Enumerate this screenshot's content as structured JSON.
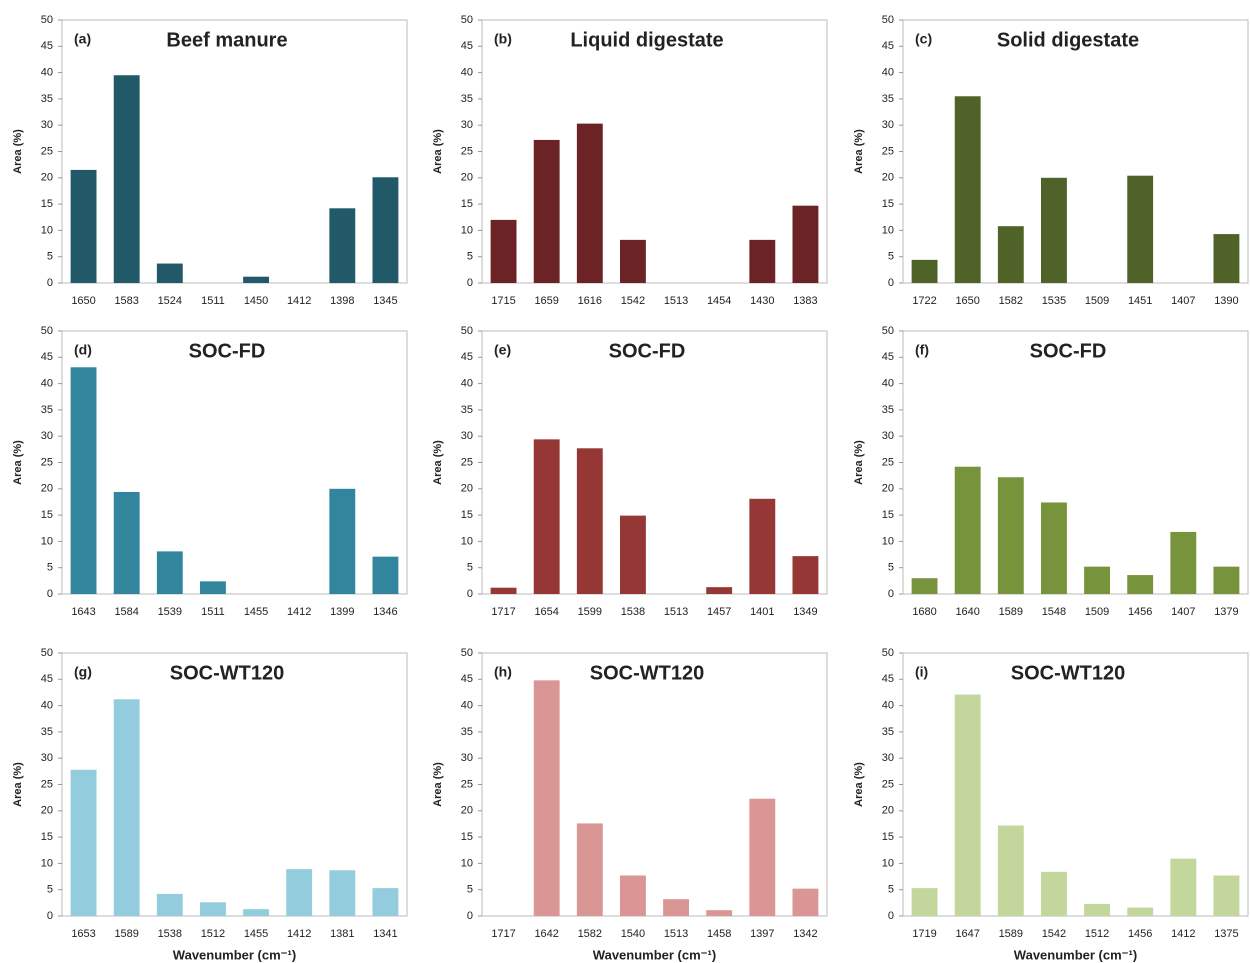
{
  "chart_data": [
    {
      "type": "bar",
      "panel_label": "(a)",
      "title": "Beef manure",
      "y_label": "Area (%)",
      "color": "#215968",
      "categories": [
        "1650",
        "1583",
        "1524",
        "1511",
        "1450",
        "1412",
        "1398",
        "1345"
      ],
      "values": [
        21.5,
        39.5,
        3.7,
        0,
        1.2,
        0,
        14.2,
        20.1
      ],
      "ylim": [
        0,
        50
      ],
      "yticks": [
        0,
        5,
        10,
        15,
        20,
        25,
        30,
        35,
        40,
        45,
        50
      ]
    },
    {
      "type": "bar",
      "panel_label": "(b)",
      "title": "Liquid digestate",
      "y_label": "Area (%)",
      "color": "#6b2325",
      "categories": [
        "1715",
        "1659",
        "1616",
        "1542",
        "1513",
        "1454",
        "1430",
        "1383"
      ],
      "values": [
        12,
        27.2,
        30.3,
        8.2,
        0,
        0,
        8.2,
        14.7
      ],
      "ylim": [
        0,
        50
      ],
      "yticks": [
        0,
        5,
        10,
        15,
        20,
        25,
        30,
        35,
        40,
        45,
        50
      ]
    },
    {
      "type": "bar",
      "panel_label": "(c)",
      "title": "Solid digestate",
      "y_label": "Area (%)",
      "color": "#4f6228",
      "categories": [
        "1722",
        "1650",
        "1582",
        "1535",
        "1509",
        "1451",
        "1407",
        "1390"
      ],
      "values": [
        4.4,
        35.5,
        10.8,
        20,
        0,
        20.4,
        0,
        9.3
      ],
      "ylim": [
        0,
        50
      ],
      "yticks": [
        0,
        5,
        10,
        15,
        20,
        25,
        30,
        35,
        40,
        45,
        50
      ]
    },
    {
      "type": "bar",
      "panel_label": "(d)",
      "title": "SOC-FD",
      "y_label": "Area (%)",
      "color": "#31859c",
      "categories": [
        "1643",
        "1584",
        "1539",
        "1511",
        "1455",
        "1412",
        "1399",
        "1346"
      ],
      "values": [
        43.1,
        19.4,
        8.1,
        2.4,
        0,
        0,
        20,
        7.1
      ],
      "ylim": [
        0,
        50
      ],
      "yticks": [
        0,
        5,
        10,
        15,
        20,
        25,
        30,
        35,
        40,
        45,
        50
      ]
    },
    {
      "type": "bar",
      "panel_label": "(e)",
      "title": "SOC-FD",
      "y_label": "Area (%)",
      "color": "#953735",
      "categories": [
        "1717",
        "1654",
        "1599",
        "1538",
        "1513",
        "1457",
        "1401",
        "1349"
      ],
      "values": [
        1.2,
        29.4,
        27.7,
        14.9,
        0,
        1.3,
        18.1,
        7.2
      ],
      "ylim": [
        0,
        50
      ],
      "yticks": [
        0,
        5,
        10,
        15,
        20,
        25,
        30,
        35,
        40,
        45,
        50
      ]
    },
    {
      "type": "bar",
      "panel_label": "(f)",
      "title": "SOC-FD",
      "y_label": "Area (%)",
      "color": "#77933c",
      "categories": [
        "1680",
        "1640",
        "1589",
        "1548",
        "1509",
        "1456",
        "1407",
        "1379"
      ],
      "values": [
        3,
        24.2,
        22.2,
        17.4,
        5.2,
        3.6,
        11.8,
        5.2
      ],
      "ylim": [
        0,
        50
      ],
      "yticks": [
        0,
        5,
        10,
        15,
        20,
        25,
        30,
        35,
        40,
        45,
        50
      ]
    },
    {
      "type": "bar",
      "panel_label": "(g)",
      "title": "SOC-WT120",
      "y_label": "Area (%)",
      "x_label": "Wavenumber (cm⁻¹)",
      "color": "#93cddd",
      "categories": [
        "1653",
        "1589",
        "1538",
        "1512",
        "1455",
        "1412",
        "1381",
        "1341"
      ],
      "values": [
        27.8,
        41.2,
        4.2,
        2.6,
        1.3,
        8.9,
        8.7,
        5.3
      ],
      "ylim": [
        0,
        50
      ],
      "yticks": [
        0,
        5,
        10,
        15,
        20,
        25,
        30,
        35,
        40,
        45,
        50
      ]
    },
    {
      "type": "bar",
      "panel_label": "(h)",
      "title": "SOC-WT120",
      "y_label": "Area (%)",
      "x_label": "Wavenumber (cm⁻¹)",
      "color": "#d99694",
      "categories": [
        "1717",
        "1642",
        "1582",
        "1540",
        "1513",
        "1458",
        "1397",
        "1342"
      ],
      "values": [
        0,
        44.8,
        17.6,
        7.7,
        3.2,
        1.1,
        22.3,
        5.2
      ],
      "ylim": [
        0,
        50
      ],
      "yticks": [
        0,
        5,
        10,
        15,
        20,
        25,
        30,
        35,
        40,
        45,
        50
      ]
    },
    {
      "type": "bar",
      "panel_label": "(i)",
      "title": "SOC-WT120",
      "y_label": "Area (%)",
      "x_label": "Wavenumber (cm⁻¹)",
      "color": "#c3d69b",
      "categories": [
        "1719",
        "1647",
        "1589",
        "1542",
        "1512",
        "1456",
        "1412",
        "1375"
      ],
      "values": [
        5.3,
        42.1,
        17.2,
        8.4,
        2.3,
        1.6,
        10.9,
        7.7
      ],
      "ylim": [
        0,
        50
      ],
      "yticks": [
        0,
        5,
        10,
        15,
        20,
        25,
        30,
        35,
        40,
        45,
        50
      ]
    }
  ]
}
